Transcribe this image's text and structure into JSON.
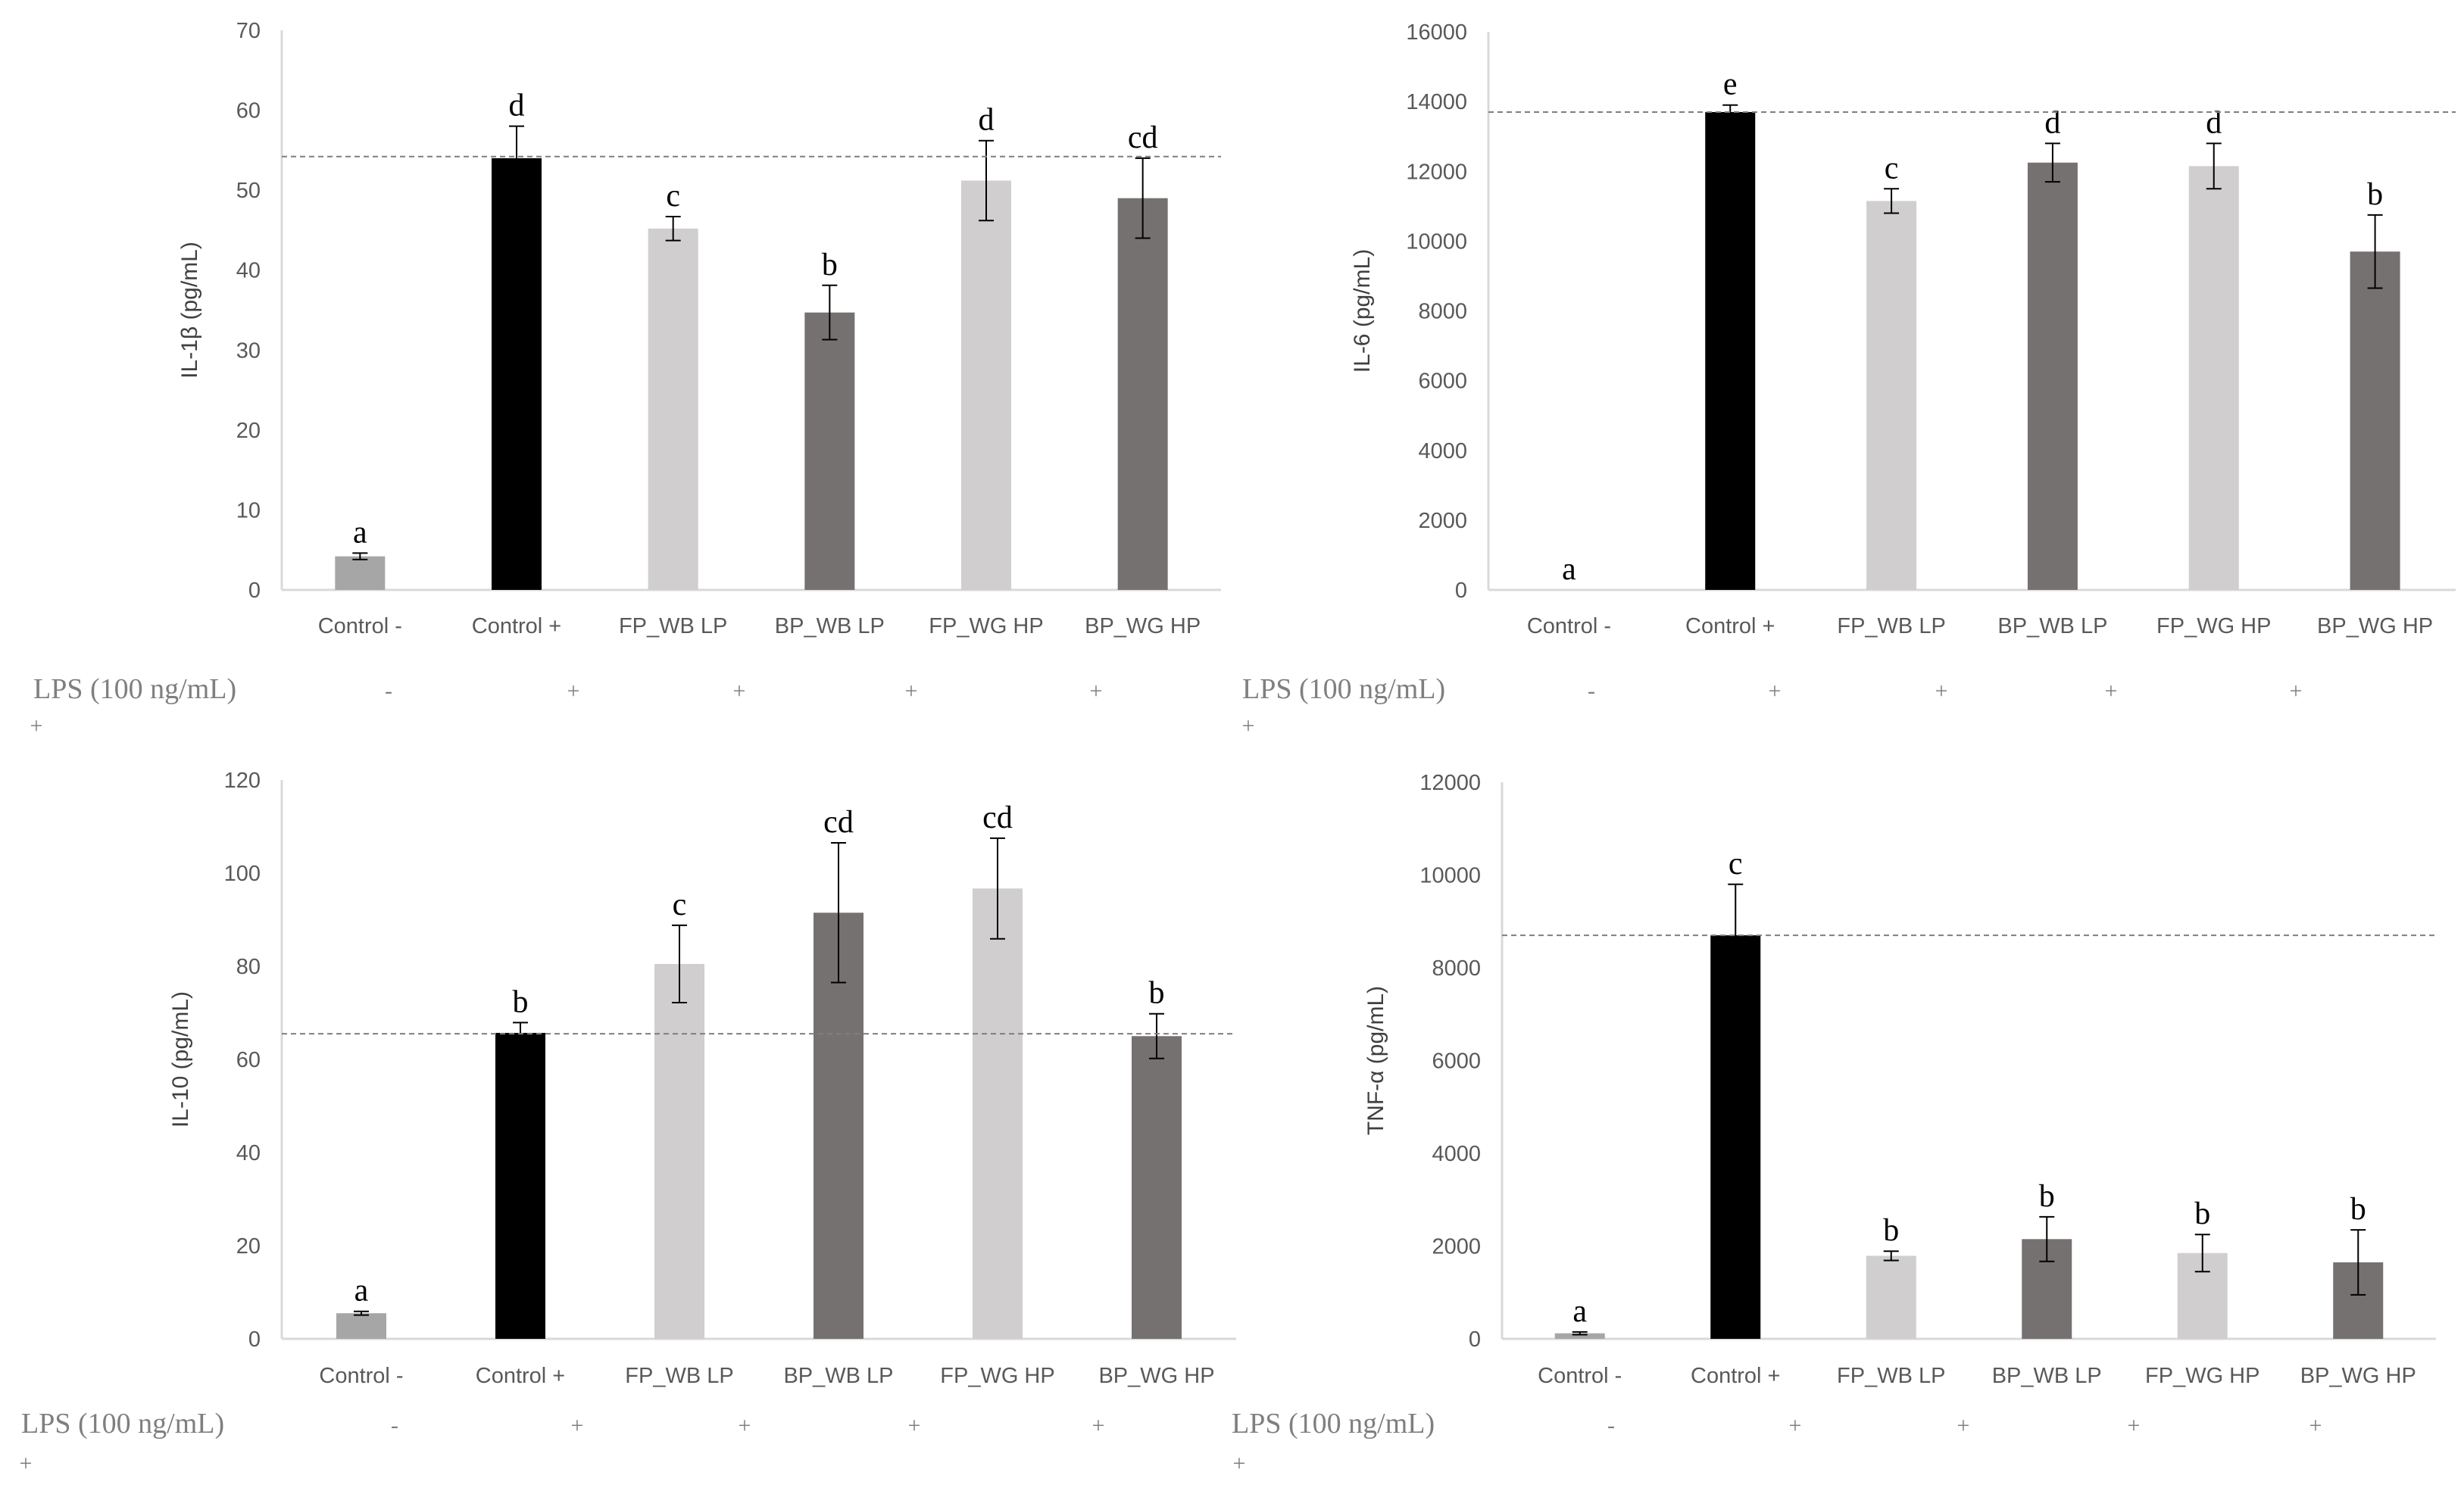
{
  "chart_data": [
    {
      "type": "bar",
      "ylabel": "IL-1β (pg/mL)",
      "categories": [
        "Control -",
        "Control +",
        "FP_WB LP",
        "BP_WB LP",
        "FP_WG HP",
        "BP_WG HP"
      ],
      "values": [
        4.2,
        54,
        45.2,
        34.7,
        51.2,
        49
      ],
      "errors": [
        0.4,
        4,
        1.5,
        3.4,
        5,
        5
      ],
      "letters": [
        "a",
        "d",
        "c",
        "b",
        "d",
        "cd"
      ],
      "ylim": [
        0,
        70
      ],
      "yticks": [
        0,
        10,
        20,
        30,
        40,
        50,
        60,
        70
      ],
      "reference_line": 54.2,
      "lps_label": "LPS (100 ng/mL)",
      "lps_marks": [
        "-",
        "+",
        "+",
        "+",
        "+",
        "+"
      ]
    },
    {
      "type": "bar",
      "ylabel": "IL-6  (pg/mL)",
      "categories": [
        "Control -",
        "Control +",
        "FP_WB LP",
        "BP_WB LP",
        "FP_WG HP",
        "BP_WG HP"
      ],
      "values": [
        0,
        13700,
        11150,
        12250,
        12150,
        9700
      ],
      "errors": [
        0,
        200,
        350,
        550,
        650,
        1050
      ],
      "letters": [
        "a",
        "e",
        "c",
        "d",
        "d",
        "b"
      ],
      "ylim": [
        0,
        16000
      ],
      "yticks": [
        0,
        2000,
        4000,
        6000,
        8000,
        10000,
        12000,
        14000,
        16000
      ],
      "reference_line": 13700,
      "lps_label": "LPS (100 ng/mL)",
      "lps_marks": [
        "-",
        "+",
        "+",
        "+",
        "+",
        "+"
      ]
    },
    {
      "type": "bar",
      "ylabel": "IL-10  (pg/mL)",
      "categories": [
        "Control -",
        "Control +",
        "FP_WB LP",
        "BP_WB LP",
        "FP_WG HP",
        "BP_WG HP"
      ],
      "values": [
        5.5,
        65.7,
        80.5,
        91.5,
        96.7,
        65
      ],
      "errors": [
        0.4,
        2.2,
        8.3,
        15,
        10.8,
        4.8
      ],
      "letters": [
        "a",
        "b",
        "c",
        "cd",
        "cd",
        "b"
      ],
      "ylim": [
        0,
        120
      ],
      "yticks": [
        0,
        20,
        40,
        60,
        80,
        100,
        120
      ],
      "reference_line": 65.5,
      "lps_label": "LPS (100 ng/mL)",
      "lps_marks": [
        "-",
        "+",
        "+",
        "+",
        "+",
        "+"
      ]
    },
    {
      "type": "bar",
      "ylabel": "TNF-α  (pg/mL)",
      "categories": [
        "Control -",
        "Control +",
        "FP_WB LP",
        "BP_WB LP",
        "FP_WG HP",
        "BP_WG HP"
      ],
      "values": [
        120,
        8700,
        1790,
        2150,
        1850,
        1650
      ],
      "errors": [
        30,
        1100,
        100,
        480,
        400,
        700
      ],
      "letters": [
        "a",
        "c",
        "b",
        "b",
        "b",
        "b"
      ],
      "ylim": [
        0,
        12000
      ],
      "yticks": [
        0,
        2000,
        4000,
        6000,
        8000,
        10000,
        12000
      ],
      "reference_line": 8700,
      "lps_label": "LPS (100 ng/mL)",
      "lps_marks": [
        "-",
        "+",
        "+",
        "+",
        "+",
        "+"
      ]
    }
  ],
  "colors": {
    "control_neg": "#a6a6a6",
    "control_pos": "#000000",
    "fp": "#d0cece",
    "bp": "#767171",
    "axis": "#d9d9d9",
    "error_bar": "#000000",
    "ref_line": "#7f7f7f"
  }
}
